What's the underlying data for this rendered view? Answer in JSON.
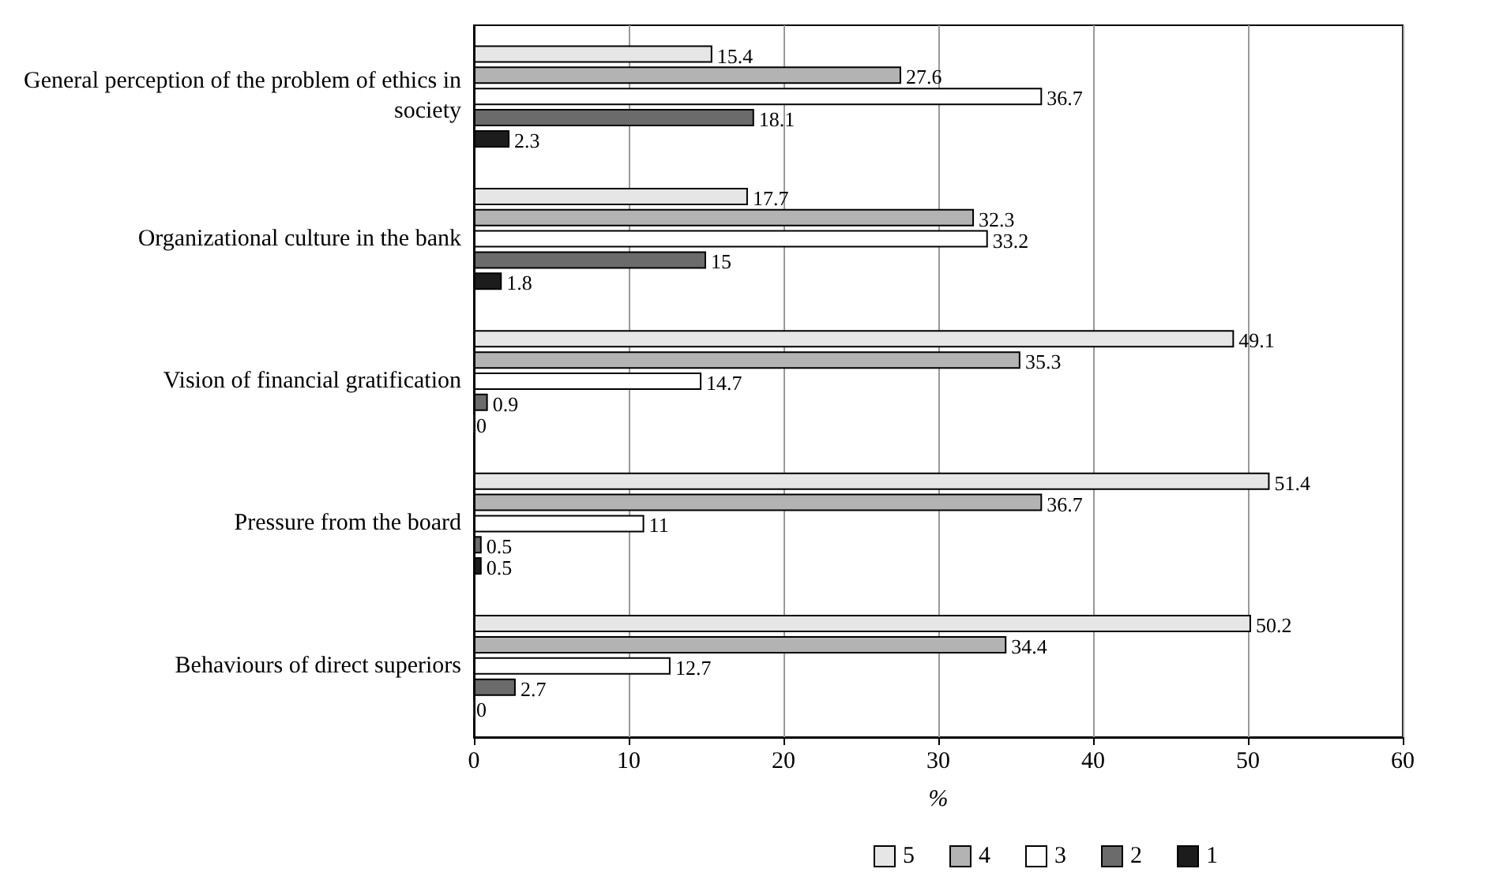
{
  "chart_data": {
    "type": "bar",
    "orientation": "horizontal",
    "xlabel": "%",
    "categories": [
      "General perception of the problem of ethics in society",
      "Organizational culture in the bank",
      "Vision of financial gratification",
      "Pressure from the board",
      "Behaviours of direct superiors"
    ],
    "series": [
      {
        "name": "5",
        "color": "#e6e6e6",
        "values": [
          15.4,
          17.7,
          49.1,
          51.4,
          50.2
        ]
      },
      {
        "name": "4",
        "color": "#b3b3b3",
        "values": [
          27.6,
          32.3,
          35.3,
          36.7,
          34.4
        ]
      },
      {
        "name": "3",
        "color": "#ffffff",
        "values": [
          36.7,
          33.2,
          14.7,
          11,
          12.7
        ]
      },
      {
        "name": "2",
        "color": "#6b6b6b",
        "values": [
          18.1,
          15,
          0.9,
          0.5,
          2.7
        ]
      },
      {
        "name": "1",
        "color": "#1c1c1c",
        "values": [
          2.3,
          1.8,
          0,
          0.5,
          0
        ]
      }
    ],
    "xlim": [
      0,
      60
    ],
    "xticks": [
      0,
      10,
      20,
      30,
      40,
      50,
      60
    ],
    "grid": "x",
    "legend": "bottom",
    "data_labels": true
  }
}
